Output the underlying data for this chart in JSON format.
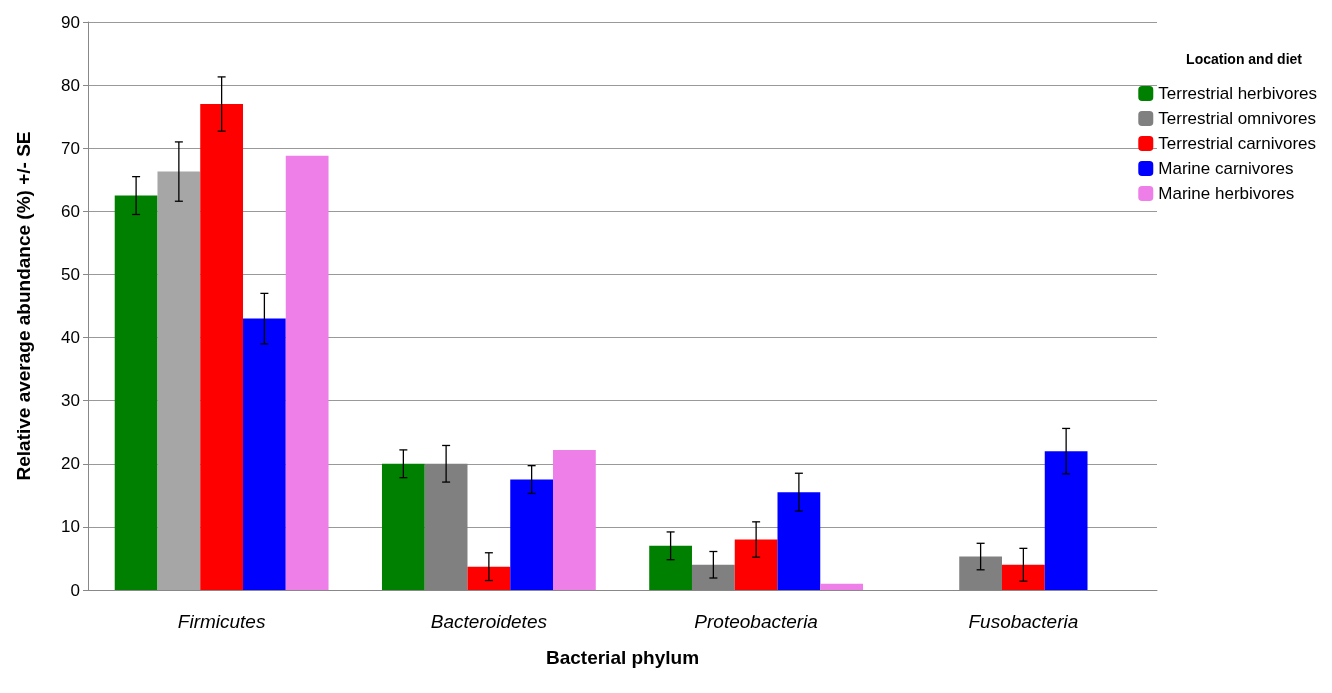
{
  "chart_data": {
    "type": "bar",
    "xlabel": "Bacterial phylum",
    "ylabel": "Relative average abundance (%) +/- SE",
    "legend_title": "Location and diet",
    "categories": [
      "Firmicutes",
      "Bacteroidetes",
      "Proteobacteria",
      "Fusobacteria"
    ],
    "series": [
      {
        "name": "Terrestrial herbivores",
        "color": "#008000",
        "values": [
          62.5,
          20,
          7,
          0
        ],
        "errors": [
          3,
          2.2,
          2.2,
          null
        ]
      },
      {
        "name": "Terrestrial omnivores",
        "color": "#808080",
        "colors": [
          "#a6a6a6",
          "#808080",
          "#808080",
          "#808080"
        ],
        "values": [
          66.3,
          20,
          4,
          5.3
        ],
        "errors": [
          4.7,
          2.9,
          2.1,
          2.1
        ]
      },
      {
        "name": "Terrestrial carnivores",
        "color": "#ff0000",
        "values": [
          77,
          3.7,
          8,
          4
        ],
        "errors": [
          4.3,
          2.2,
          2.8,
          2.6
        ]
      },
      {
        "name": "Marine carnivores",
        "color": "#0000ff",
        "values": [
          43,
          17.5,
          15.5,
          22
        ],
        "errors": [
          4,
          2.2,
          3,
          3.6
        ]
      },
      {
        "name": "Marine herbivores",
        "color": "#ee7ee8",
        "values": [
          68.8,
          22.2,
          1,
          null
        ],
        "errors": [
          null,
          null,
          null,
          null
        ]
      }
    ],
    "ylim": [
      0,
      90
    ],
    "yticks": [
      0,
      10,
      20,
      30,
      40,
      50,
      60,
      70,
      80,
      90
    ],
    "grid": "y",
    "legend": "right"
  }
}
